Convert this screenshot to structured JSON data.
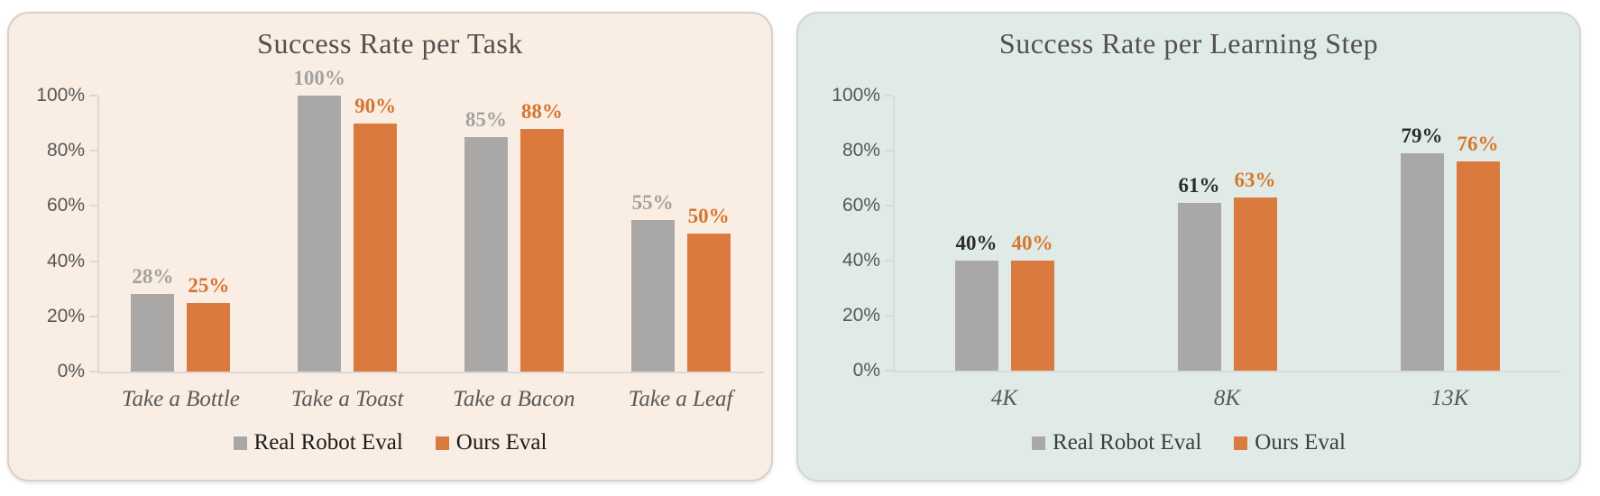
{
  "page_bg": "#ffffff",
  "colors": {
    "axis_line": "#d9d9d9",
    "tick_text": "#575757",
    "category_text": "#595959",
    "title_text": "#54504f"
  },
  "chart_data": [
    {
      "type": "bar",
      "title": "Success Rate per Task",
      "panel_bg": "#faede3",
      "panel_border": "#d8d1c9",
      "categories": [
        "Take a Bottle",
        "Take a Toast",
        "Take a Bacon",
        "Take a Leaf"
      ],
      "series": [
        {
          "name": "Real Robot Eval",
          "color": "#a9a8a7",
          "label_color": "#a3a2a1",
          "values": [
            28,
            100,
            85,
            55
          ]
        },
        {
          "name": "Ours Eval",
          "color": "#da7a3e",
          "label_color": "#d5752f",
          "values": [
            25,
            90,
            88,
            50
          ]
        }
      ],
      "ylabel": "",
      "xlabel": "",
      "ylim": [
        0,
        100
      ],
      "yticks": [
        "0%",
        "20%",
        "40%",
        "60%",
        "80%",
        "100%"
      ],
      "grid": false,
      "data_labels": true,
      "legend_position": "bottom",
      "legend_text_color": "#1c1c1c"
    },
    {
      "type": "bar",
      "title": "Success Rate per Learning Step",
      "panel_bg": "#e0ebe8",
      "panel_border": "#d2d7d6",
      "categories": [
        "4K",
        "8K",
        "13K"
      ],
      "series": [
        {
          "name": "Real Robot Eval",
          "color": "#a9a8a7",
          "label_color": "#2d2d2d",
          "values": [
            40,
            61,
            79
          ]
        },
        {
          "name": "Ours Eval",
          "color": "#da7a3e",
          "label_color": "#d9762f",
          "values": [
            40,
            63,
            76
          ]
        }
      ],
      "ylabel": "",
      "xlabel": "",
      "ylim": [
        0,
        100
      ],
      "yticks": [
        "0%",
        "20%",
        "40%",
        "60%",
        "80%",
        "100%"
      ],
      "grid": false,
      "data_labels": true,
      "legend_position": "bottom",
      "legend_text_color": "#3e3e3e"
    }
  ]
}
